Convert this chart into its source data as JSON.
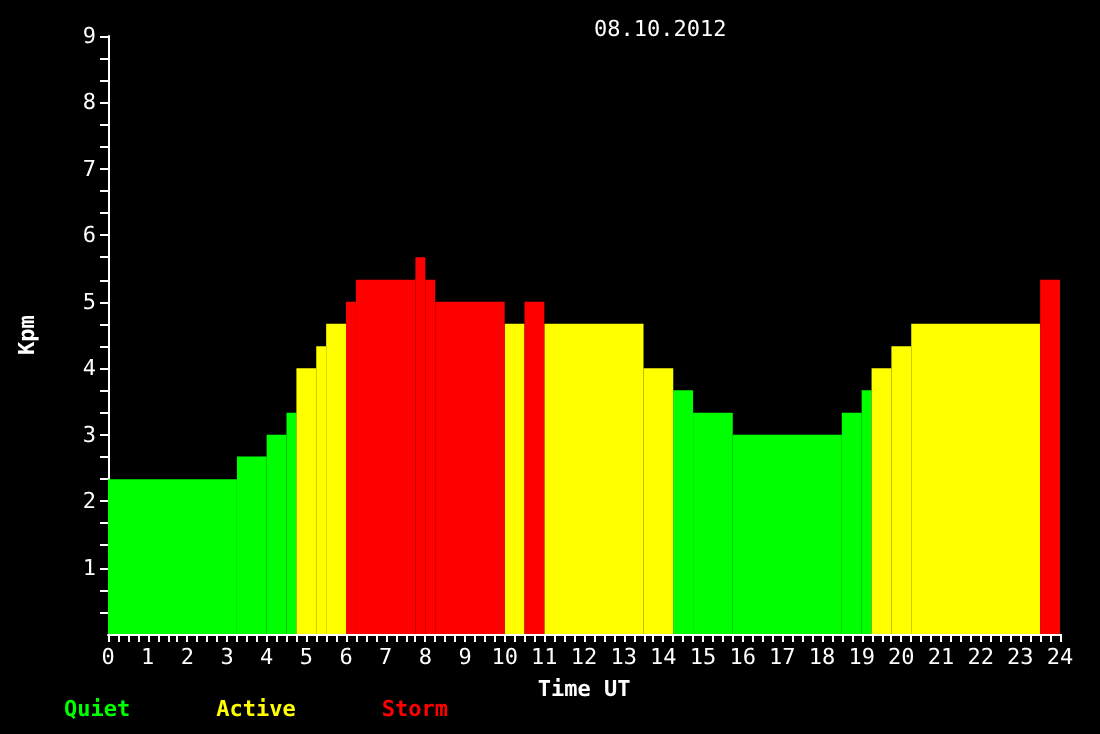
{
  "chart_data": {
    "type": "histogram",
    "title": "08.10.2012",
    "xlabel": "Time UT",
    "ylabel": "Kpm",
    "bins": [
      0,
      3.25,
      4,
      4.5,
      4.75,
      5.25,
      5.5,
      6,
      6.25,
      7.75,
      8,
      8.25,
      10,
      10.5,
      11,
      13.5,
      14.25,
      14.75,
      15.75,
      18.5,
      19,
      19.25,
      19.75,
      20.25,
      23.5,
      24
    ],
    "series": [
      {
        "name": "Quiet",
        "color": "#00ff00",
        "values": [
          2.33,
          2.67,
          3,
          3.33,
          null,
          null,
          null,
          null,
          null,
          null,
          null,
          null,
          null,
          null,
          null,
          null,
          3.67,
          3.33,
          3,
          3.33,
          3.67,
          null,
          null,
          null,
          null
        ]
      },
      {
        "name": "Active",
        "color": "#ffff00",
        "values": [
          null,
          null,
          null,
          null,
          4,
          4.33,
          4.67,
          null,
          null,
          null,
          null,
          null,
          4.67,
          null,
          4.67,
          4,
          null,
          null,
          null,
          null,
          null,
          4,
          4.33,
          4.67,
          null
        ]
      },
      {
        "name": "Storm",
        "color": "#ff0000",
        "values": [
          null,
          null,
          null,
          null,
          null,
          null,
          null,
          5,
          5.33,
          5.67,
          5.33,
          5,
          null,
          5,
          null,
          null,
          null,
          null,
          null,
          null,
          null,
          null,
          null,
          null,
          5.33
        ]
      }
    ],
    "xlim": [
      0,
      24
    ],
    "xticks": [
      0,
      {
        "value": 0.25,
        "label": null
      },
      {
        "value": 0.5,
        "label": null
      },
      {
        "value": 0.75,
        "label": null
      },
      1,
      {
        "value": 1.25,
        "label": null
      },
      {
        "value": 1.5,
        "label": null
      },
      {
        "value": 1.75,
        "label": null
      },
      2,
      {
        "value": 2.25,
        "label": null
      },
      {
        "value": 2.5,
        "label": null
      },
      {
        "value": 2.75,
        "label": null
      },
      3,
      {
        "value": 3.25,
        "label": null
      },
      {
        "value": 3.5,
        "label": null
      },
      {
        "value": 3.75,
        "label": null
      },
      4,
      {
        "value": 4.25,
        "label": null
      },
      {
        "value": 4.5,
        "label": null
      },
      {
        "value": 4.75,
        "label": null
      },
      5,
      {
        "value": 5.25,
        "label": null
      },
      {
        "value": 5.5,
        "label": null
      },
      {
        "value": 5.75,
        "label": null
      },
      6,
      {
        "value": 6.25,
        "label": null
      },
      {
        "value": 6.5,
        "label": null
      },
      {
        "value": 6.75,
        "label": null
      },
      7,
      {
        "value": 7.25,
        "label": null
      },
      {
        "value": 7.5,
        "label": null
      },
      {
        "value": 7.75,
        "label": null
      },
      8,
      {
        "value": 8.25,
        "label": null
      },
      {
        "value": 8.5,
        "label": null
      },
      {
        "value": 8.75,
        "label": null
      },
      9,
      {
        "value": 9.25,
        "label": null
      },
      {
        "value": 9.5,
        "label": null
      },
      {
        "value": 9.75,
        "label": null
      },
      10,
      {
        "value": 10.25,
        "label": null
      },
      {
        "value": 10.5,
        "label": null
      },
      {
        "value": 10.75,
        "label": null
      },
      11,
      {
        "value": 11.25,
        "label": null
      },
      {
        "value": 11.5,
        "label": null
      },
      {
        "value": 11.75,
        "label": null
      },
      12,
      {
        "value": 12.25,
        "label": null
      },
      {
        "value": 12.5,
        "label": null
      },
      {
        "value": 12.75,
        "label": null
      },
      13,
      {
        "value": 13.25,
        "label": null
      },
      {
        "value": 13.5,
        "label": null
      },
      {
        "value": 13.75,
        "label": null
      },
      14,
      {
        "value": 14.25,
        "label": null
      },
      {
        "value": 14.5,
        "label": null
      },
      {
        "value": 14.75,
        "label": null
      },
      15,
      {
        "value": 15.25,
        "label": null
      },
      {
        "value": 15.5,
        "label": null
      },
      {
        "value": 15.75,
        "label": null
      },
      16,
      {
        "value": 16.25,
        "label": null
      },
      {
        "value": 16.5,
        "label": null
      },
      {
        "value": 16.75,
        "label": null
      },
      17,
      {
        "value": 17.25,
        "label": null
      },
      {
        "value": 17.5,
        "label": null
      },
      {
        "value": 17.75,
        "label": null
      },
      18,
      {
        "value": 18.25,
        "label": null
      },
      {
        "value": 18.5,
        "label": null
      },
      {
        "value": 18.75,
        "label": null
      },
      19,
      {
        "value": 19.25,
        "label": null
      },
      {
        "value": 19.5,
        "label": null
      },
      {
        "value": 19.75,
        "label": null
      },
      20,
      {
        "value": 20.25,
        "label": null
      },
      {
        "value": 20.5,
        "label": null
      },
      {
        "value": 20.75,
        "label": null
      },
      21,
      {
        "value": 21.25,
        "label": null
      },
      {
        "value": 21.5,
        "label": null
      },
      {
        "value": 21.75,
        "label": null
      },
      22,
      {
        "value": 22.25,
        "label": null
      },
      {
        "value": 22.5,
        "label": null
      },
      {
        "value": 22.75,
        "label": null
      },
      23,
      {
        "value": 23.25,
        "label": null
      },
      {
        "value": 23.5,
        "label": null
      },
      {
        "value": 23.75,
        "label": null
      },
      24
    ],
    "ylim": [
      0,
      9
    ],
    "yticks": [
      {
        "value": 0.333,
        "label": null
      },
      {
        "value": 0.667,
        "label": null
      },
      1,
      {
        "value": 1.333,
        "label": null
      },
      {
        "value": 1.667,
        "label": null
      },
      2,
      {
        "value": 2.333,
        "label": null
      },
      {
        "value": 2.667,
        "label": null
      },
      3,
      {
        "value": 3.333,
        "label": null
      },
      {
        "value": 3.667,
        "label": null
      },
      4,
      {
        "value": 4.333,
        "label": null
      },
      {
        "value": 4.667,
        "label": null
      },
      5,
      {
        "value": 5.333,
        "label": null
      },
      {
        "value": 5.667,
        "label": null
      },
      6,
      {
        "value": 6.333,
        "label": null
      },
      {
        "value": 6.667,
        "label": null
      },
      7,
      {
        "value": 7.333,
        "label": null
      },
      {
        "value": 7.667,
        "label": null
      },
      8,
      {
        "value": 8.333,
        "label": null
      },
      {
        "value": 8.667,
        "label": null
      },
      9
    ],
    "grid": false,
    "legend": "bottom left"
  }
}
